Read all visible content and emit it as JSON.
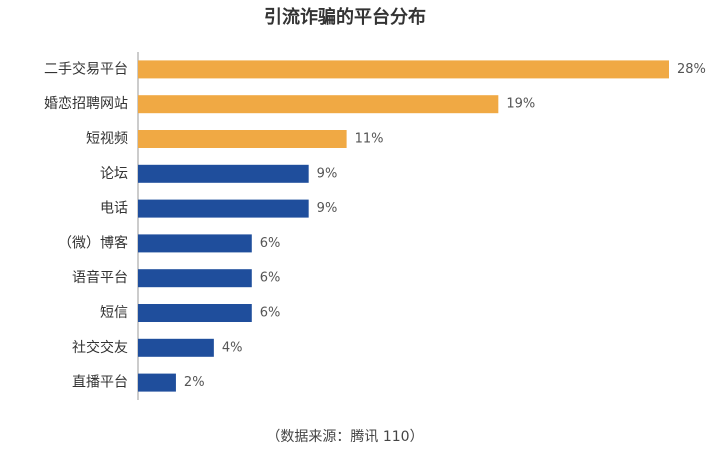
{
  "chart_data": {
    "type": "bar",
    "orientation": "horizontal",
    "title": "引流诈骗的平台分布",
    "categories": [
      "二手交易平台",
      "婚恋招聘网站",
      "短视频",
      "论坛",
      "电话",
      "（微）博客",
      "语音平台",
      "短信",
      "社交交友",
      "直播平台"
    ],
    "values": [
      28,
      19,
      11,
      9,
      9,
      6,
      6,
      6,
      4,
      2
    ],
    "value_labels": [
      "28%",
      "19%",
      "11%",
      "9%",
      "9%",
      "6%",
      "6%",
      "6%",
      "4%",
      "2%"
    ],
    "colors": [
      "#f0a944",
      "#f0a944",
      "#f0a944",
      "#1f4e9c",
      "#1f4e9c",
      "#1f4e9c",
      "#1f4e9c",
      "#1f4e9c",
      "#1f4e9c",
      "#1f4e9c"
    ],
    "source": "（数据来源：腾讯 110）"
  }
}
